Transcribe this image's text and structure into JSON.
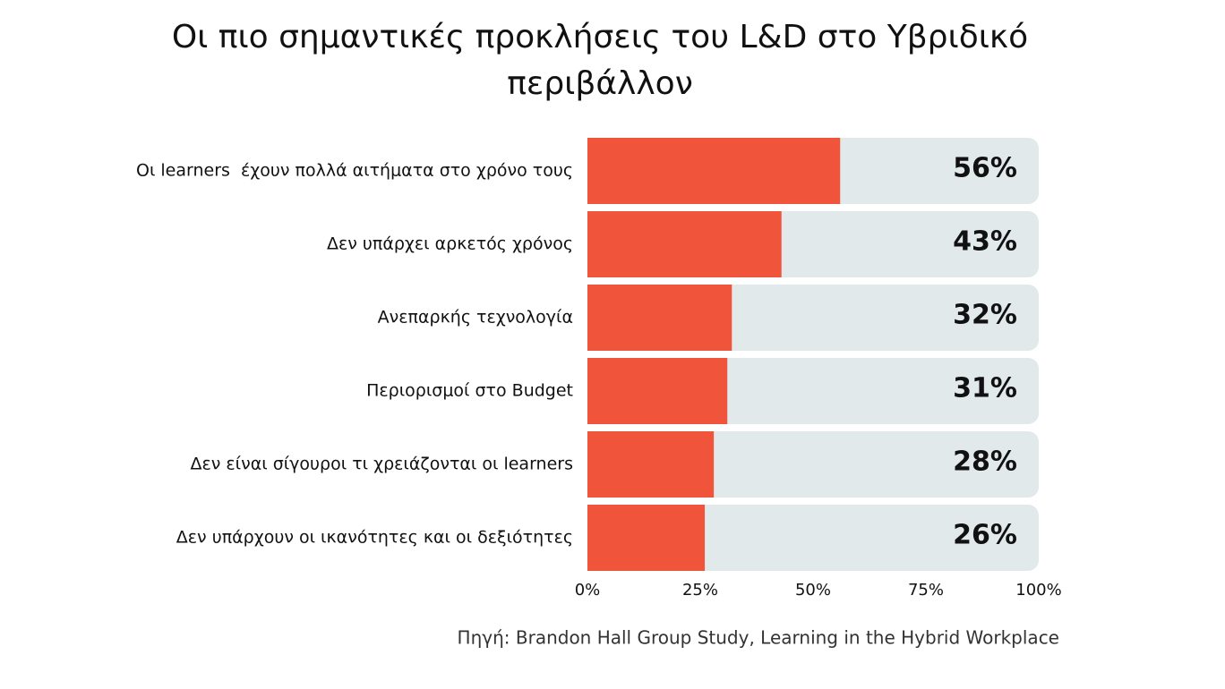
{
  "chart_data": {
    "type": "bar",
    "orientation": "horizontal",
    "title": "Οι πιο σημαντικές προκλήσεις του L&D στο Υβριδικό περιβάλλον",
    "categories": [
      "Οι learners  έχουν πολλά αιτήματα στο χρόνο τους",
      "Δεν υπάρχει αρκετός χρόνος",
      "Ανεπαρκής τεχνολογία",
      "Περιορισμοί στο Budget",
      "Δεν είναι σίγουροι τι χρειάζονται οι learners",
      "Δεν υπάρχουν οι ικανότητες και οι δεξιότητες"
    ],
    "values": [
      56,
      43,
      32,
      31,
      28,
      26
    ],
    "value_labels": [
      "56%",
      "43%",
      "32%",
      "31%",
      "28%",
      "26%"
    ],
    "color": "#f0553b",
    "track_color": "#e1e9ea",
    "xlim": [
      0,
      100
    ],
    "xticks": [
      {
        "value": 0,
        "label": "0%"
      },
      {
        "value": 25,
        "label": "25%"
      },
      {
        "value": 50,
        "label": "50%"
      },
      {
        "value": 75,
        "label": "75%"
      },
      {
        "value": 100,
        "label": "100%"
      }
    ],
    "source": "Πηγή: Brandon Hall Group Study, Learning in the Hybrid Workplace"
  }
}
